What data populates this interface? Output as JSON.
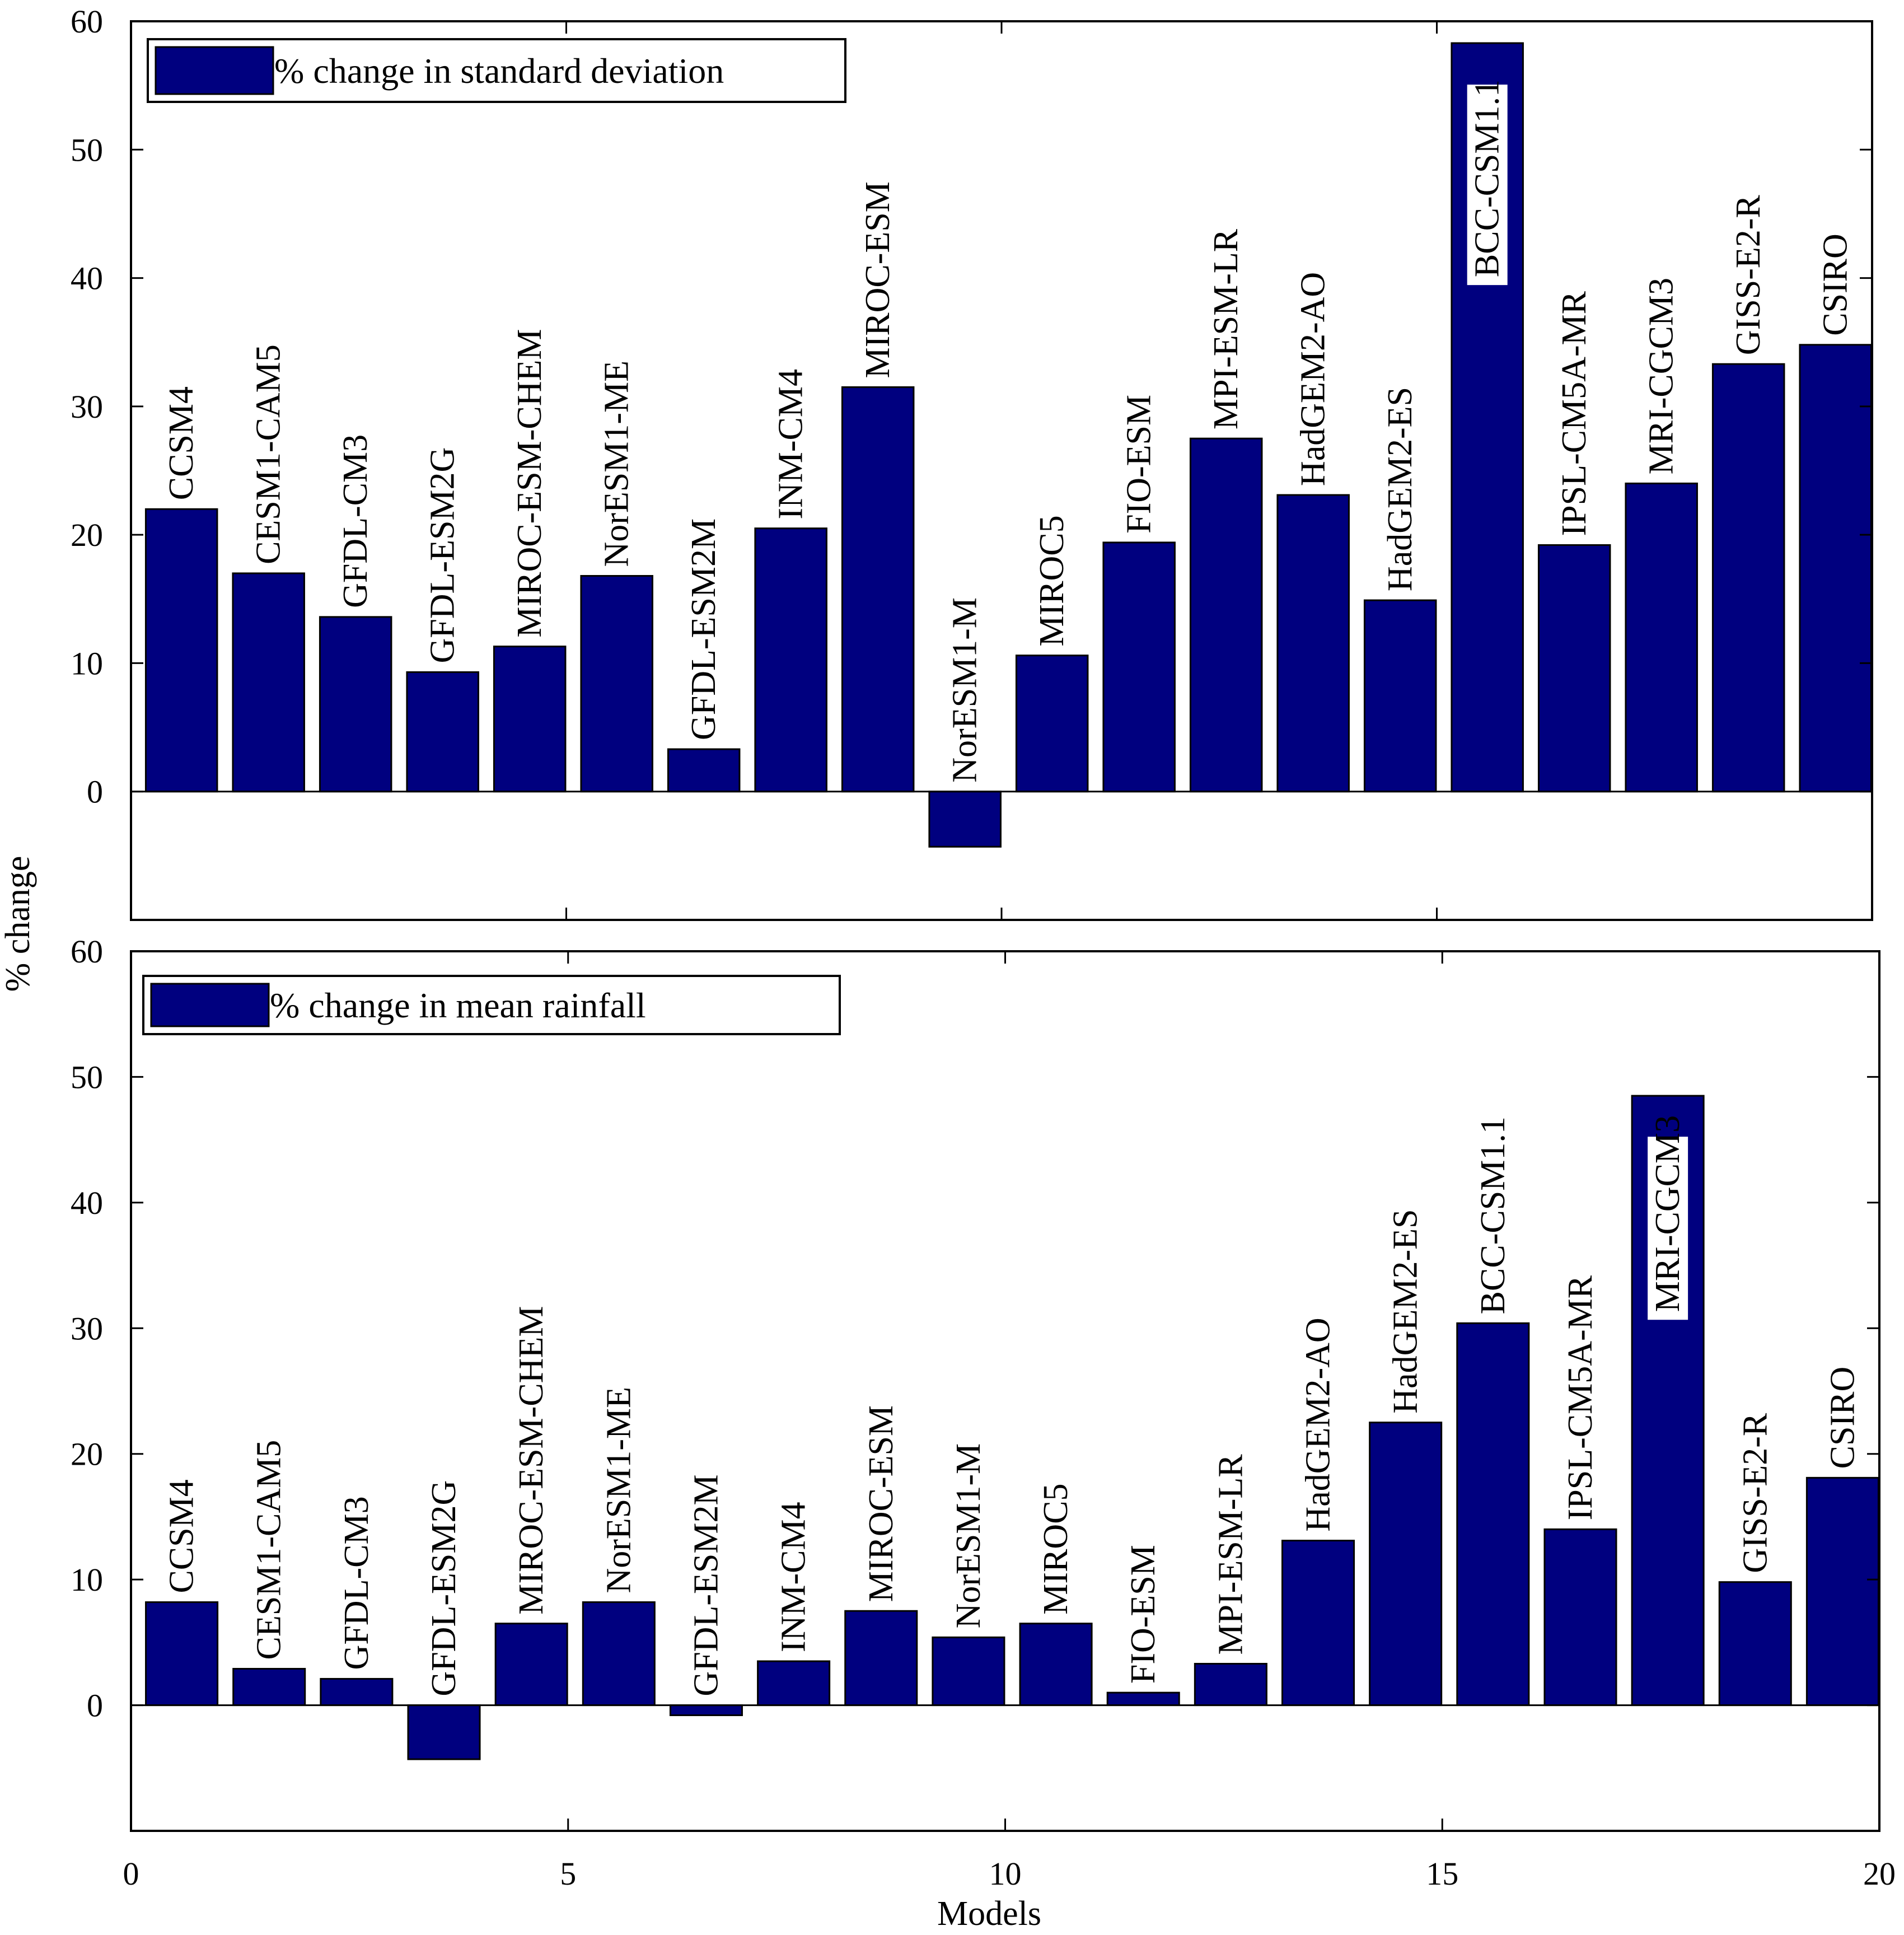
{
  "figure": {
    "xlabel": "Models",
    "ylabel": "% change"
  },
  "colors": {
    "bar": "#00007f",
    "axis": "#000000",
    "background": "#ffffff"
  },
  "chart_data": [
    {
      "type": "bar",
      "legend": "% change in standard deviation",
      "legend_position": "top-left",
      "xlim": [
        0,
        20
      ],
      "ylim": [
        -10,
        60
      ],
      "x_ticks": [],
      "y_ticks": [
        0,
        10,
        20,
        30,
        40,
        50,
        60
      ],
      "categories": [
        "CCSM4",
        "CESM1-CAM5",
        "GFDL-CM3",
        "GFDL-ESM2G",
        "MIROC-ESM-CHEM",
        "NorESM1-ME",
        "GFDL-ESM2M",
        "INM-CM4",
        "MIROC-ESM",
        "NorESM1-M",
        "MIROC5",
        "FIO-ESM",
        "MPI-ESM-LR",
        "HadGEM2-AO",
        "HadGEM2-ES",
        "BCC-CSM1.1",
        "IPSL-CM5A-MR",
        "MRI-CGCM3",
        "GISS-E2-R",
        "CSIRO"
      ],
      "x": [
        1,
        2,
        3,
        4,
        5,
        6,
        7,
        8,
        9,
        10,
        11,
        12,
        13,
        14,
        15,
        16,
        17,
        18,
        19,
        20
      ],
      "values": [
        22,
        17,
        13.6,
        9.3,
        11.3,
        16.8,
        3.3,
        20.5,
        31.5,
        -4.3,
        10.6,
        19.4,
        27.5,
        23.1,
        14.9,
        58.3,
        19.2,
        24,
        33.3,
        34.8
      ],
      "grid": false
    },
    {
      "type": "bar",
      "legend": "% change in mean rainfall",
      "legend_position": "top-left",
      "xlim": [
        0,
        20
      ],
      "ylim": [
        -10,
        60
      ],
      "x_ticks": [
        0,
        5,
        10,
        15,
        20
      ],
      "y_ticks": [
        0,
        10,
        20,
        30,
        40,
        50,
        60
      ],
      "categories": [
        "CCSM4",
        "CESM1-CAM5",
        "GFDL-CM3",
        "GFDL-ESM2G",
        "MIROC-ESM-CHEM",
        "NorESM1-ME",
        "GFDL-ESM2M",
        "INM-CM4",
        "MIROC-ESM",
        "NorESM1-M",
        "MIROC5",
        "FIO-ESM",
        "MPI-ESM-LR",
        "HadGEM2-AO",
        "HadGEM2-ES",
        "BCC-CSM1.1",
        "IPSL-CM5A-MR",
        "MRI-CGCM3",
        "GISS-E2-R",
        "CSIRO"
      ],
      "x": [
        1,
        2,
        3,
        4,
        5,
        6,
        7,
        8,
        9,
        10,
        11,
        12,
        13,
        14,
        15,
        16,
        17,
        18,
        19,
        20
      ],
      "values": [
        8.2,
        2.9,
        2.1,
        -4.3,
        6.5,
        8.2,
        -0.8,
        3.5,
        7.5,
        5.4,
        6.5,
        1,
        3.3,
        13.1,
        22.5,
        30.4,
        14,
        48.5,
        9.8,
        18.1
      ],
      "grid": false
    }
  ]
}
